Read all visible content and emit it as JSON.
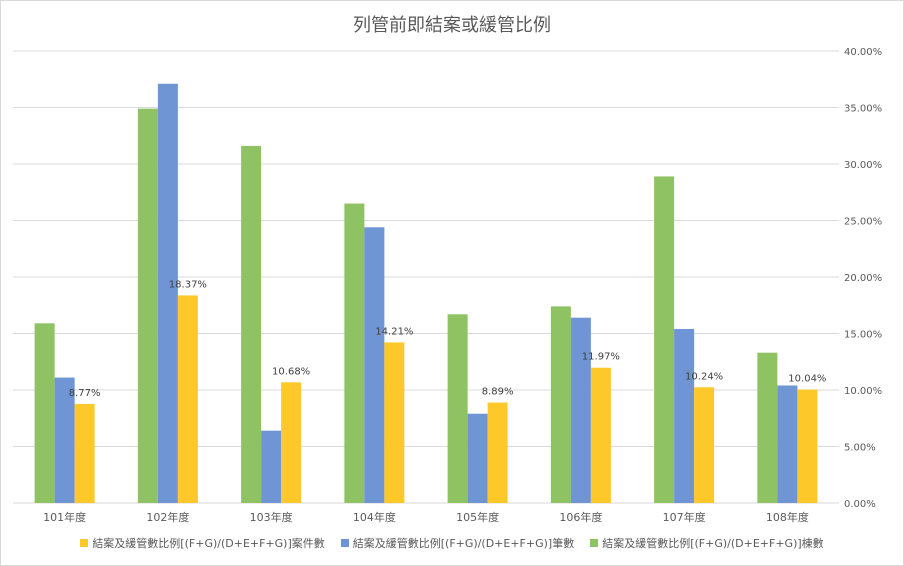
{
  "chart_data": {
    "type": "bar",
    "title": "列管前即結案或緩管比例",
    "categories": [
      "101年度",
      "102年度",
      "103年度",
      "104年度",
      "105年度",
      "106年度",
      "107年度",
      "108年度"
    ],
    "yaxis_position": "right",
    "ylim": [
      0,
      40
    ],
    "yticks": [
      "0.00%",
      "5.00%",
      "10.00%",
      "15.00%",
      "20.00%",
      "25.00%",
      "30.00%",
      "35.00%",
      "40.00%"
    ],
    "grid": true,
    "legend_position": "bottom",
    "series": [
      {
        "name": "結案及緩管數比例[(F+G)/(D+E+F+G)]棟數",
        "color": "#8ec262",
        "values": [
          15.9,
          34.9,
          31.6,
          26.5,
          16.7,
          17.4,
          28.9,
          13.3
        ]
      },
      {
        "name": "結案及緩管數比例[(F+G)/(D+E+F+G)]筆數",
        "color": "#6f95d4",
        "values": [
          11.1,
          37.1,
          6.4,
          24.4,
          7.9,
          16.4,
          15.4,
          10.4
        ]
      },
      {
        "name": "結案及緩管數比例[(F+G)/(D+E+F+G)]案件數",
        "color": "#fdc829",
        "values": [
          8.77,
          18.37,
          10.68,
          14.21,
          8.89,
          11.97,
          10.24,
          10.04
        ],
        "labels": [
          "8.77%",
          "18.37%",
          "10.68%",
          "14.21%",
          "8.89%",
          "11.97%",
          "10.24%",
          "10.04%"
        ]
      }
    ]
  },
  "legend": [
    {
      "label": "結案及緩管數比例[(F+G)/(D+E+F+G)]案件數",
      "color": "#fdc829"
    },
    {
      "label": "結案及緩管數比例[(F+G)/(D+E+F+G)]筆數",
      "color": "#6f95d4"
    },
    {
      "label": "結案及緩管數比例[(F+G)/(D+E+F+G)]棟數",
      "color": "#8ec262"
    }
  ]
}
